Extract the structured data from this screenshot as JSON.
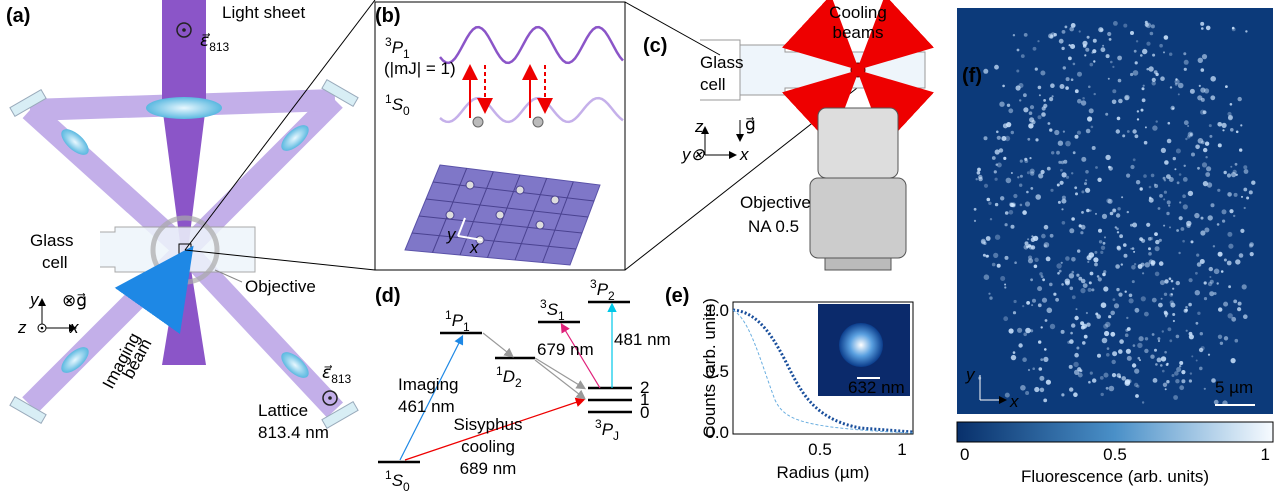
{
  "panels": {
    "a": {
      "label": "(a)",
      "light_sheet": "Light sheet",
      "pol_top": {
        "base": "ε⃗",
        "sub": "813"
      },
      "pol_bottom": {
        "base": "ε⃗",
        "sub": "813"
      },
      "glass_cell": [
        "Glass",
        "cell"
      ],
      "objective": "Objective",
      "imaging_beam": [
        "Imaging",
        "beam"
      ],
      "lattice": [
        "Lattice",
        "813.4 nm"
      ],
      "axes": {
        "y": "y",
        "z": "z",
        "x": "x",
        "g": "⊗g⃗"
      }
    },
    "b": {
      "label": "(b)",
      "upper_state": {
        "sup": "3",
        "base": "P",
        "sub": "1"
      },
      "upper_note": "(|mJ| = 1)",
      "lower_state": {
        "sup": "1",
        "base": "S",
        "sub": "0"
      },
      "axes": {
        "y": "y",
        "x": "x"
      }
    },
    "c": {
      "label": "(c)",
      "cooling": [
        "Cooling",
        "beams"
      ],
      "glass_cell": [
        "Glass",
        "cell"
      ],
      "g": "g⃗",
      "axes": {
        "z": "z",
        "y": "y⊗",
        "x": "x"
      },
      "objective": [
        "Objective",
        "NA 0.5"
      ]
    },
    "d": {
      "label": "(d)",
      "states": {
        "P1": {
          "sup": "1",
          "base": "P",
          "sub": "1"
        },
        "S1": {
          "sup": "3",
          "base": "S",
          "sub": "1"
        },
        "P2": {
          "sup": "3",
          "base": "P",
          "sub": "2"
        },
        "D2": {
          "sup": "1",
          "base": "D",
          "sub": "2"
        },
        "PJ": {
          "sup": "3",
          "base": "P",
          "sub": "J"
        },
        "S0": {
          "sup": "1",
          "base": "S",
          "sub": "0"
        }
      },
      "levels": [
        "2",
        "1",
        "0"
      ],
      "imaging": [
        "Imaging",
        "461 nm"
      ],
      "t481": "481 nm",
      "t679": "679 nm",
      "sisyphus": [
        "Sisyphus",
        "cooling",
        "689 nm"
      ]
    },
    "e": {
      "label": "(e)",
      "ylabel": "Counts (arb. units)",
      "xlabel": "Radius (µm)",
      "yticks": [
        "1.0",
        "0.5",
        "0.0"
      ],
      "xticks": [
        "0.5",
        "1"
      ],
      "inset_scale": "632 nm"
    },
    "f": {
      "label": "(f)",
      "axes": {
        "y": "y",
        "x": "x"
      },
      "scale": "5 µm",
      "colorbar_ticks": [
        "0",
        "0.5",
        "1"
      ],
      "colorbar_label": "Fluorescence (arb. units)"
    }
  }
}
